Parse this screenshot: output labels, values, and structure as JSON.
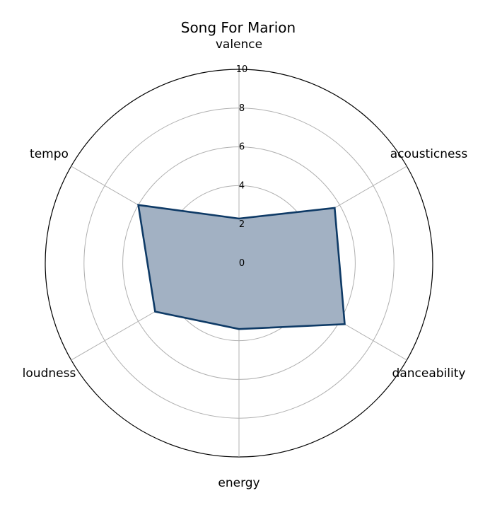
{
  "chart_data": {
    "type": "radar",
    "title": "Song For Marion",
    "axes": [
      "valence",
      "acousticness",
      "danceability",
      "energy",
      "loudness",
      "tempo"
    ],
    "series": [
      {
        "values": [
          2.3,
          5.7,
          6.3,
          3.4,
          5.0,
          6.0
        ]
      }
    ],
    "rlim": [
      0,
      10
    ],
    "rticks": [
      0,
      2,
      4,
      6,
      8,
      10
    ],
    "grid": true,
    "colors": {
      "line": "#0e3a66",
      "fill": "#a2b1c3",
      "title": "#0e3a66",
      "grid": "#b0b0b0",
      "outer": "#000000"
    }
  }
}
